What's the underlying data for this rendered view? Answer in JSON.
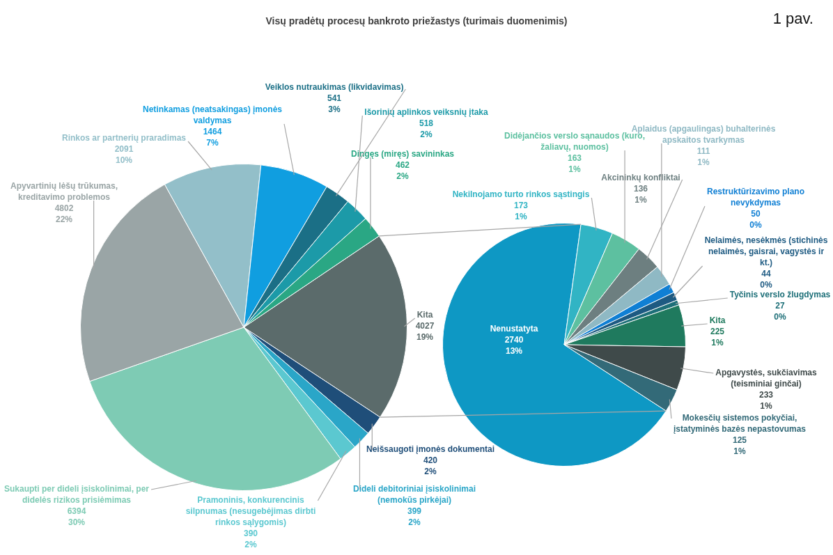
{
  "chart_data": [
    {
      "type": "pie",
      "title": "Visų pradėtų procesų bankroto priežastys (turimais duomenimis)",
      "annotations": [
        "1 pav."
      ],
      "categories": [
        "Kita",
        "Neišsaugoti įmonės dokumentai",
        "Dideli debitoriniai įsiskolinimai (nemokūs pirkėjai)",
        "Pramoninis, konkurencinis silpnumas (nesugebėjimas dirbti rinkos sąlygomis)",
        "Sukaupti per dideli įsiskolinimai, per didelės rizikos prisiėmimas",
        "Apyvartinių lėšų trūkumas, kreditavimo problemos",
        "Rinkos ar partnerių praradimas",
        "Netinkamas (neatsakingas) įmonės valdymas",
        "Veiklos nutraukimas (likvidavimas)",
        "Išorinių aplinkos veiksnių įtaka",
        "Dingęs (miręs) savininkas"
      ],
      "values": [
        4027,
        420,
        399,
        390,
        6394,
        4802,
        2091,
        1464,
        541,
        518,
        462
      ],
      "colors": [
        "#5b6b6b",
        "#1f4e79",
        "#2aa6c8",
        "#5bc8d0",
        "#7ecbb4",
        "#9aa5a6",
        "#93bfc9",
        "#109ee0",
        "#1b6f86",
        "#1c9aa8",
        "#2aa784"
      ],
      "value_labels": [
        "4027\n19%",
        "420\n2%",
        "399\n2%",
        "390\n2%",
        "6394\n30%",
        "4802\n22%",
        "2091\n10%",
        "1464\n7%",
        "541\n3%",
        "518\n2%",
        "462\n2%"
      ]
    },
    {
      "type": "pie",
      "categories": [
        "Nenustatyta",
        "Nekilnojamo turto rinkos sąstingis",
        "Didėjančios verslo sąnaudos (kuro, žaliavų, nuomos)",
        "Akcininkų konfliktai",
        "Aplaidus (apgaulingas) buhalterinės apskaitos tvarkymas",
        "Restruktūrizavimo plano nevykdymas",
        "Nelaimės, nesėkmės (stichinės nelaimės, gaisrai, vagystės ir kt.)",
        "Tyčinis verslo žlugdymas",
        "Kita",
        "Apgavystės, sukčiavimas (teisminiai ginčai)",
        "Mokesčių sistemos pokyčiai, įstatyminės bazės nepastovumas"
      ],
      "values": [
        2740,
        173,
        163,
        136,
        111,
        50,
        44,
        27,
        225,
        233,
        125
      ],
      "colors": [
        "#0e98c4",
        "#31b4c4",
        "#5dc0a0",
        "#6d7f80",
        "#8fb9c4",
        "#0f7fd4",
        "#1d5a82",
        "#1d6f78",
        "#1f7a5e",
        "#3f4a4a",
        "#336a78"
      ],
      "value_labels": [
        "2740\n13%",
        "173\n1%",
        "163\n1%",
        "136\n1%",
        "111\n1%",
        "50\n0%",
        "44\n0%",
        "27\n0%",
        "225\n1%",
        "233\n1%",
        "125\n1%"
      ]
    }
  ]
}
